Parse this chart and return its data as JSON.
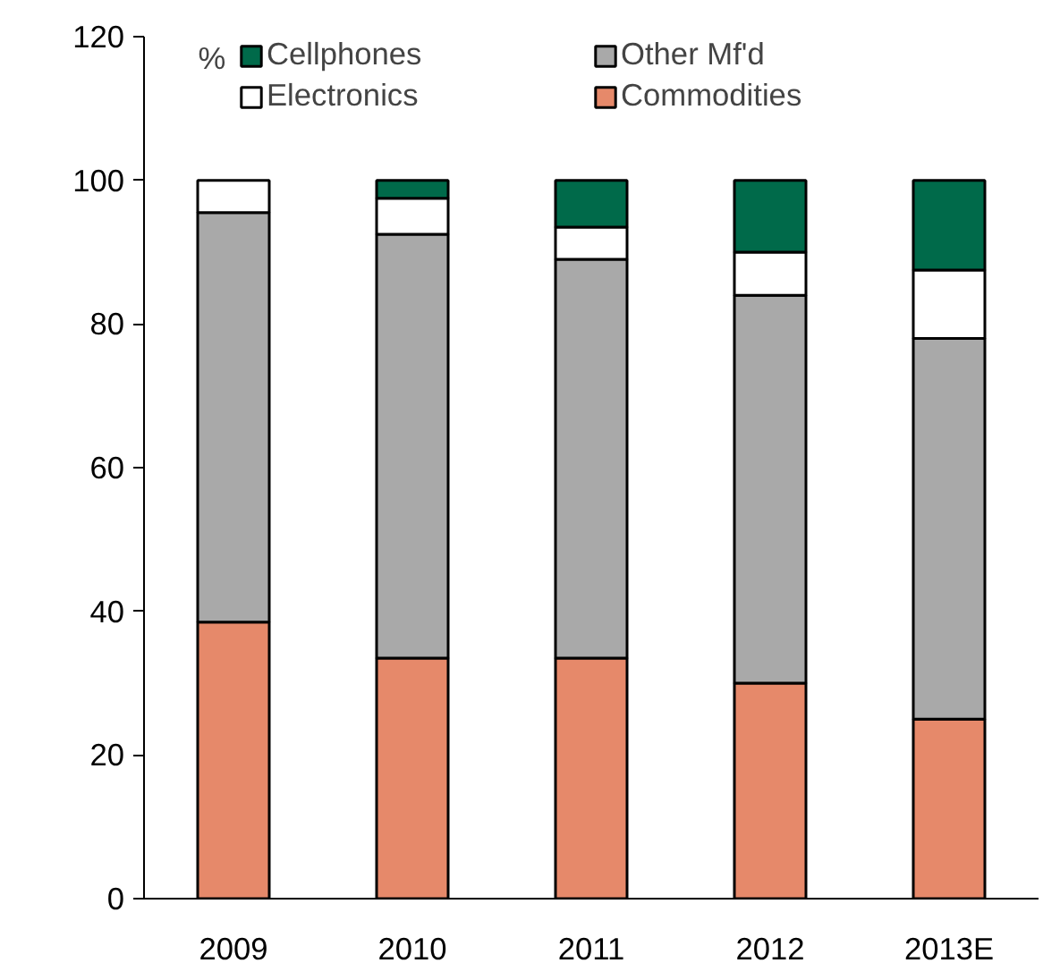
{
  "chart_data": {
    "type": "bar",
    "stacked": true,
    "ylabel": "%",
    "categories": [
      "2009",
      "2010",
      "2011",
      "2012",
      "2013E"
    ],
    "series": [
      {
        "name": "Commodities",
        "color": "#e6896a",
        "values": [
          38.5,
          33.5,
          33.5,
          30,
          25
        ]
      },
      {
        "name": "Other Mf'd",
        "color": "#a9a9a9",
        "values": [
          57,
          59,
          55.5,
          54,
          53
        ]
      },
      {
        "name": "Electronics",
        "color": "#ffffff",
        "values": [
          4.5,
          5,
          4.5,
          6,
          9.5
        ]
      },
      {
        "name": "Cellphones",
        "color": "#006a4a",
        "values": [
          null,
          2.5,
          6.5,
          10,
          12.5
        ]
      }
    ],
    "ylim": [
      0,
      120
    ],
    "yticks": [
      0,
      20,
      40,
      60,
      80,
      100,
      120
    ],
    "grid": false,
    "legend": "top"
  }
}
